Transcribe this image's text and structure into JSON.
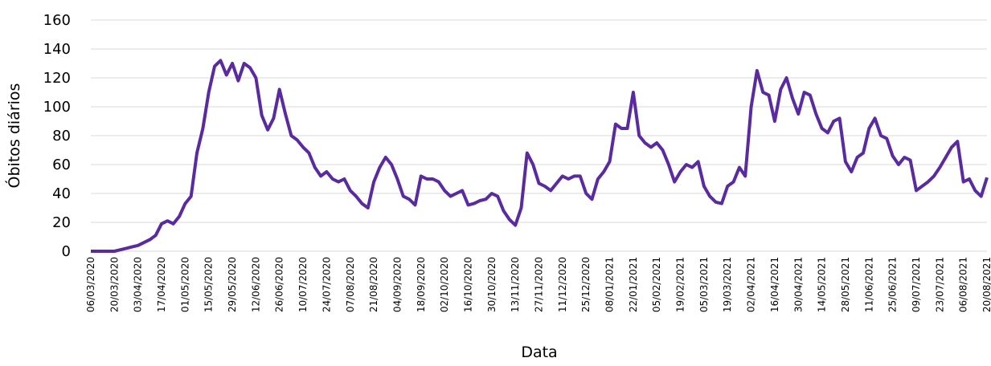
{
  "chart_data": {
    "type": "line",
    "xlabel": "Data",
    "ylabel": "Óbitos diários",
    "categories": [
      "06/03/2020",
      null,
      null,
      null,
      "20/03/2020",
      null,
      null,
      null,
      "03/04/2020",
      null,
      null,
      null,
      "17/04/2020",
      null,
      null,
      null,
      "01/05/2020",
      null,
      null,
      null,
      "15/05/2020",
      null,
      null,
      null,
      "29/05/2020",
      null,
      null,
      null,
      "12/06/2020",
      null,
      null,
      null,
      "26/06/2020",
      null,
      null,
      null,
      "10/07/2020",
      null,
      null,
      null,
      "24/07/2020",
      null,
      null,
      null,
      "07/08/2020",
      null,
      null,
      null,
      "21/08/2020",
      null,
      null,
      null,
      "04/09/2020",
      null,
      null,
      null,
      "18/09/2020",
      null,
      null,
      null,
      "02/10/2020",
      null,
      null,
      null,
      "16/10/2020",
      null,
      null,
      null,
      "30/10/2020",
      null,
      null,
      null,
      "13/11/2020",
      null,
      null,
      null,
      "27/11/2020",
      null,
      null,
      null,
      "11/12/2020",
      null,
      null,
      null,
      "25/12/2020",
      null,
      null,
      null,
      "08/01/2021",
      null,
      null,
      null,
      "22/01/2021",
      null,
      null,
      null,
      "05/02/2021",
      null,
      null,
      null,
      "19/02/2021",
      null,
      null,
      null,
      "05/03/2021",
      null,
      null,
      null,
      "19/03/2021",
      null,
      null,
      null,
      "02/04/2021",
      null,
      null,
      null,
      "16/04/2021",
      null,
      null,
      null,
      "30/04/2021",
      null,
      null,
      null,
      "14/05/2021",
      null,
      null,
      null,
      "28/05/2021",
      null,
      null,
      null,
      "11/06/2021",
      null,
      null,
      null,
      "25/06/2021",
      null,
      null,
      null,
      "09/07/2021",
      null,
      null,
      null,
      "23/07/2021",
      null,
      null,
      null,
      "06/08/2021",
      null,
      null,
      null,
      "20/08/2021"
    ],
    "series": [
      {
        "color": "#5a2aa0",
        "values": [
          0,
          0,
          0,
          0,
          0,
          1,
          2,
          3,
          4,
          6,
          8,
          11,
          19,
          21,
          19,
          24,
          33,
          38,
          68,
          85,
          110,
          128,
          132,
          122,
          130,
          118,
          130,
          127,
          120,
          94,
          84,
          92,
          112,
          95,
          80,
          77,
          72,
          68,
          58,
          52,
          55,
          50,
          48,
          50,
          42,
          38,
          33,
          30,
          48,
          58,
          65,
          60,
          50,
          38,
          36,
          32,
          52,
          50,
          50,
          48,
          42,
          38,
          40,
          42,
          32,
          33,
          35,
          36,
          40,
          38,
          28,
          22,
          18,
          30,
          68,
          60,
          47,
          45,
          42,
          47,
          52,
          50,
          52,
          52,
          40,
          36,
          50,
          55,
          62,
          88,
          85,
          85,
          110,
          80,
          75,
          72,
          75,
          70,
          60,
          48,
          55,
          60,
          58,
          62,
          45,
          38,
          34,
          33,
          45,
          48,
          58,
          52,
          100,
          125,
          110,
          108,
          90,
          112,
          120,
          106,
          95,
          110,
          108,
          95,
          85,
          82,
          90,
          92,
          62,
          55,
          65,
          68,
          85,
          92,
          80,
          78,
          66,
          60,
          65,
          63,
          42,
          45,
          48,
          52,
          58,
          65,
          72,
          76,
          48,
          50,
          42,
          38,
          51
        ]
      }
    ],
    "ylim": [
      0,
      160
    ],
    "yticks": [
      0,
      20,
      40,
      60,
      80,
      100,
      120,
      140,
      160
    ],
    "grid": true
  }
}
